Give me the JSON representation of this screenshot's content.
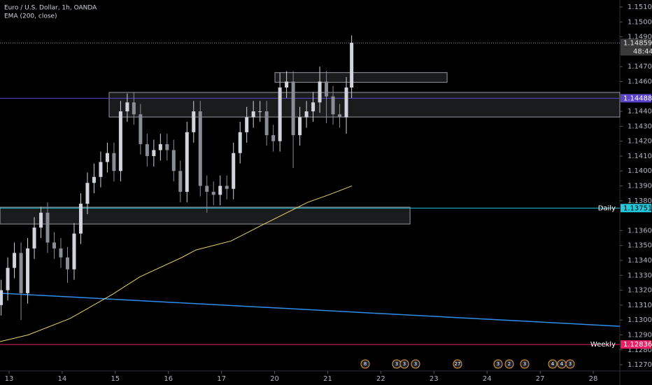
{
  "chart_data": {
    "type": "candlestick",
    "title": "Euro / U.S. Dollar, 1h, OANDA",
    "indicator": "EMA (200, close)",
    "up_color": "#d1d4dc",
    "down_color": "#8a8d96",
    "xlim": [
      -0.171,
      11.5
    ],
    "xticks": [
      {
        "value": 0,
        "label": "13"
      },
      {
        "value": 1,
        "label": "14"
      },
      {
        "value": 2,
        "label": "15"
      },
      {
        "value": 3,
        "label": "16"
      },
      {
        "value": 4,
        "label": "17"
      },
      {
        "value": 5,
        "label": "20"
      },
      {
        "value": 6,
        "label": "21"
      },
      {
        "value": 7,
        "label": "22"
      },
      {
        "value": 8,
        "label": "23"
      },
      {
        "value": 9,
        "label": "24"
      },
      {
        "value": 10,
        "label": "27"
      },
      {
        "value": 11,
        "label": "28"
      }
    ],
    "ylim": [
      1.12658,
      1.15147
    ],
    "yticks": [
      {
        "value": 1.151,
        "label": "1.15100"
      },
      {
        "value": 1.15,
        "label": "1.15000"
      },
      {
        "value": 1.149,
        "label": "1.14900"
      },
      {
        "value": 1.147,
        "label": "1.14700"
      },
      {
        "value": 1.146,
        "label": "1.14600"
      },
      {
        "value": 1.144,
        "label": "1.14400"
      },
      {
        "value": 1.143,
        "label": "1.14300"
      },
      {
        "value": 1.142,
        "label": "1.14200"
      },
      {
        "value": 1.141,
        "label": "1.14100"
      },
      {
        "value": 1.14,
        "label": "1.14000"
      },
      {
        "value": 1.139,
        "label": "1.13900"
      },
      {
        "value": 1.138,
        "label": "1.13800"
      },
      {
        "value": 1.136,
        "label": "1.13600"
      },
      {
        "value": 1.135,
        "label": "1.13500"
      },
      {
        "value": 1.134,
        "label": "1.13400"
      },
      {
        "value": 1.133,
        "label": "1.13300"
      },
      {
        "value": 1.132,
        "label": "1.13200"
      },
      {
        "value": 1.131,
        "label": "1.13100"
      },
      {
        "value": 1.13,
        "label": "1.13000"
      },
      {
        "value": 1.129,
        "label": "1.12900"
      },
      {
        "value": 1.128,
        "label": "1.12800"
      },
      {
        "value": 1.127,
        "label": "1.12700"
      }
    ],
    "x": [
      -0.15,
      -0.025,
      0.1,
      0.225,
      0.35,
      0.475,
      0.6,
      0.725,
      0.85,
      0.975,
      1.1,
      1.225,
      1.35,
      1.475,
      1.6,
      1.725,
      1.85,
      1.975,
      2.1,
      2.225,
      2.35,
      2.475,
      2.6,
      2.725,
      2.85,
      2.975,
      3.1,
      3.225,
      3.35,
      3.475,
      3.6,
      3.725,
      3.85,
      3.975,
      4.1,
      4.225,
      4.35,
      4.475,
      4.6,
      4.725,
      4.85,
      4.975,
      5.1,
      5.225,
      5.35,
      5.475,
      5.6,
      5.725,
      5.85,
      5.975,
      6.1,
      6.225,
      6.35,
      6.45
    ],
    "open": [
      1.131,
      1.132,
      1.1335,
      1.1345,
      1.1318,
      1.1348,
      1.1362,
      1.1372,
      1.1352,
      1.1348,
      1.1342,
      1.1334,
      1.1358,
      1.1378,
      1.1392,
      1.1396,
      1.1406,
      1.1412,
      1.14,
      1.144,
      1.1446,
      1.1438,
      1.1418,
      1.141,
      1.1414,
      1.1418,
      1.1414,
      1.14,
      1.1386,
      1.1426,
      1.144,
      1.139,
      1.1386,
      1.1384,
      1.139,
      1.1388,
      1.1412,
      1.1426,
      1.1436,
      1.144,
      1.144,
      1.1424,
      1.142,
      1.1456,
      1.146,
      1.1424,
      1.1436,
      1.144,
      1.1446,
      1.146,
      1.145,
      1.1438,
      1.1436,
      1.1456
    ],
    "high": [
      1.1327,
      1.1342,
      1.1352,
      1.1352,
      1.1355,
      1.1369,
      1.1376,
      1.1379,
      1.1359,
      1.1355,
      1.1349,
      1.1365,
      1.1385,
      1.1399,
      1.1405,
      1.1413,
      1.1419,
      1.1419,
      1.1447,
      1.1452,
      1.1453,
      1.1445,
      1.1425,
      1.1421,
      1.1425,
      1.1425,
      1.1421,
      1.1407,
      1.1433,
      1.1447,
      1.1447,
      1.1397,
      1.1393,
      1.1397,
      1.1397,
      1.1419,
      1.1433,
      1.1443,
      1.1447,
      1.1447,
      1.1447,
      1.1431,
      1.1466,
      1.1467,
      1.1467,
      1.1443,
      1.1447,
      1.1453,
      1.147,
      1.1467,
      1.1457,
      1.1445,
      1.1463,
      1.1491
    ],
    "low": [
      1.1303,
      1.1313,
      1.1328,
      1.13,
      1.1311,
      1.1341,
      1.1355,
      1.1345,
      1.1341,
      1.1335,
      1.1325,
      1.1327,
      1.1351,
      1.1371,
      1.1385,
      1.1389,
      1.1399,
      1.1393,
      1.1393,
      1.1433,
      1.1431,
      1.1411,
      1.1403,
      1.1403,
      1.1407,
      1.1407,
      1.1393,
      1.1379,
      1.1379,
      1.1419,
      1.1383,
      1.1372,
      1.1377,
      1.1377,
      1.1381,
      1.1381,
      1.1405,
      1.1419,
      1.1429,
      1.1433,
      1.1417,
      1.1413,
      1.1413,
      1.1449,
      1.1402,
      1.1417,
      1.1429,
      1.1433,
      1.1439,
      1.1432,
      1.1431,
      1.1429,
      1.1425,
      1.1449
    ],
    "close": [
      1.132,
      1.1335,
      1.1345,
      1.1318,
      1.1348,
      1.1362,
      1.1372,
      1.1352,
      1.1348,
      1.1342,
      1.1334,
      1.1358,
      1.1378,
      1.1392,
      1.1396,
      1.1406,
      1.1412,
      1.14,
      1.144,
      1.1446,
      1.1438,
      1.1418,
      1.141,
      1.1414,
      1.1418,
      1.1414,
      1.14,
      1.1386,
      1.1426,
      1.144,
      1.139,
      1.1386,
      1.1384,
      1.139,
      1.1388,
      1.1412,
      1.1426,
      1.1436,
      1.144,
      1.144,
      1.1424,
      1.142,
      1.1456,
      1.146,
      1.1424,
      1.1436,
      1.144,
      1.1446,
      1.146,
      1.145,
      1.1438,
      1.1436,
      1.1456,
      1.1486
    ],
    "ema": {
      "color": "#e8d36a",
      "x": [
        -0.17,
        0.356,
        1.146,
        1.937,
        2.464,
        3.254,
        3.518,
        4.177,
        4.835,
        5.626,
        6.021,
        6.456
      ],
      "values": [
        1.12855,
        1.129,
        1.1301,
        1.1317,
        1.1329,
        1.1342,
        1.1347,
        1.1353,
        1.1365,
        1.1379,
        1.1384,
        1.139
      ]
    },
    "trendline": {
      "color": "#2f8ef0",
      "x": [
        -0.17,
        11.5
      ],
      "values": [
        1.1318,
        1.12958
      ]
    },
    "zones": [
      {
        "x": [
          5.006,
          8.248
        ],
        "top": 1.1466,
        "bottom": 1.14595
      },
      {
        "x": [
          1.884,
          11.5
        ],
        "top": 1.14527,
        "bottom": 1.14362
      },
      {
        "x": [
          -0.17,
          7.55
        ],
        "top": 1.13757,
        "bottom": 1.13644
      }
    ],
    "levels": [
      {
        "value": 1.14859,
        "label": "1.14859",
        "color": "#9598a1",
        "tag": "#3a3a3a",
        "text_color": "#e0e0e0",
        "dashed": true,
        "countdown": "48:44"
      },
      {
        "value": 1.14488,
        "label": "1.14488",
        "color": "#5b44c9",
        "tag": "#5b44c9",
        "text_color": "#ffffff",
        "dashed": false
      },
      {
        "value": 1.13751,
        "label": "1.13751",
        "color": "#26c6da",
        "tag": "#26c6da",
        "text_color": "#000000",
        "dashed": false,
        "name": "Daily"
      },
      {
        "value": 1.12836,
        "label": "1.12836",
        "color": "#e91e63",
        "tag": "#e91e63",
        "text_color": "#ffffff",
        "dashed": false,
        "name": "Weekly"
      }
    ],
    "events": [
      "8",
      "3",
      "3",
      "3",
      "27",
      "3",
      "2",
      "3",
      "4",
      "4",
      "3"
    ]
  }
}
